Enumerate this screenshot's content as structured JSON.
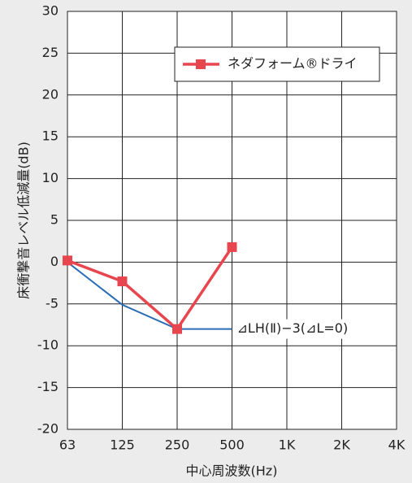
{
  "chart_data": {
    "type": "line",
    "categories": [
      "63",
      "125",
      "250",
      "500",
      "1K",
      "2K",
      "4K"
    ],
    "series": [
      {
        "name": "ネダフォーム®ドライ",
        "color": "#e8464e",
        "values": [
          0.2,
          -2.3,
          -8.0,
          1.8,
          null,
          null,
          null
        ]
      },
      {
        "color": "#2a6db5",
        "values": [
          0,
          -5.1,
          -8,
          -8,
          null,
          null,
          null
        ]
      }
    ],
    "annotation": "⊿LH(Ⅱ)−3(⊿L=0)",
    "ylabel": "床衝撃音レベル低減量(dB)",
    "xlabel": "中心周波数(Hz)",
    "ylim": [
      -20,
      30
    ],
    "yticks": [
      -20,
      -15,
      -10,
      -5,
      0,
      5,
      10,
      15,
      20,
      25,
      30
    ],
    "grid": true,
    "legend": "upper right"
  }
}
